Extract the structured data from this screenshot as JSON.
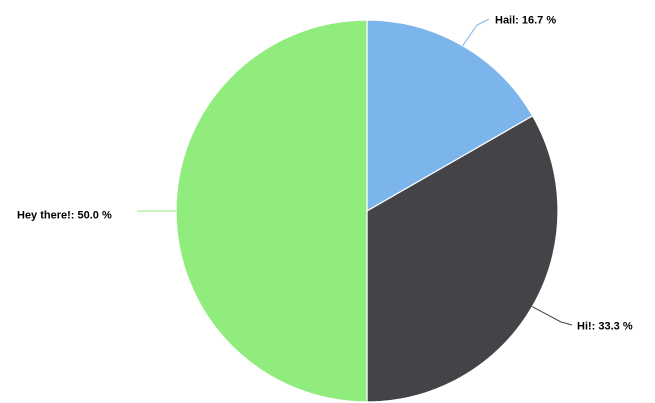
{
  "chart_data": {
    "type": "pie",
    "slices": [
      {
        "label": "Hail",
        "value": 16.7,
        "color": "#7cb5ec",
        "data_label": "Hail: 16.7 %"
      },
      {
        "label": "Hi!",
        "value": 33.3,
        "color": "#434348",
        "data_label": "Hi!: 33.3 %"
      },
      {
        "label": "Hey there!",
        "value": 50.0,
        "color": "#90ed7d",
        "data_label": "Hey there!: 50.0 %"
      }
    ],
    "start_angle": "12 o'clock",
    "direction": "clockwise",
    "legend": "none",
    "title": ""
  }
}
